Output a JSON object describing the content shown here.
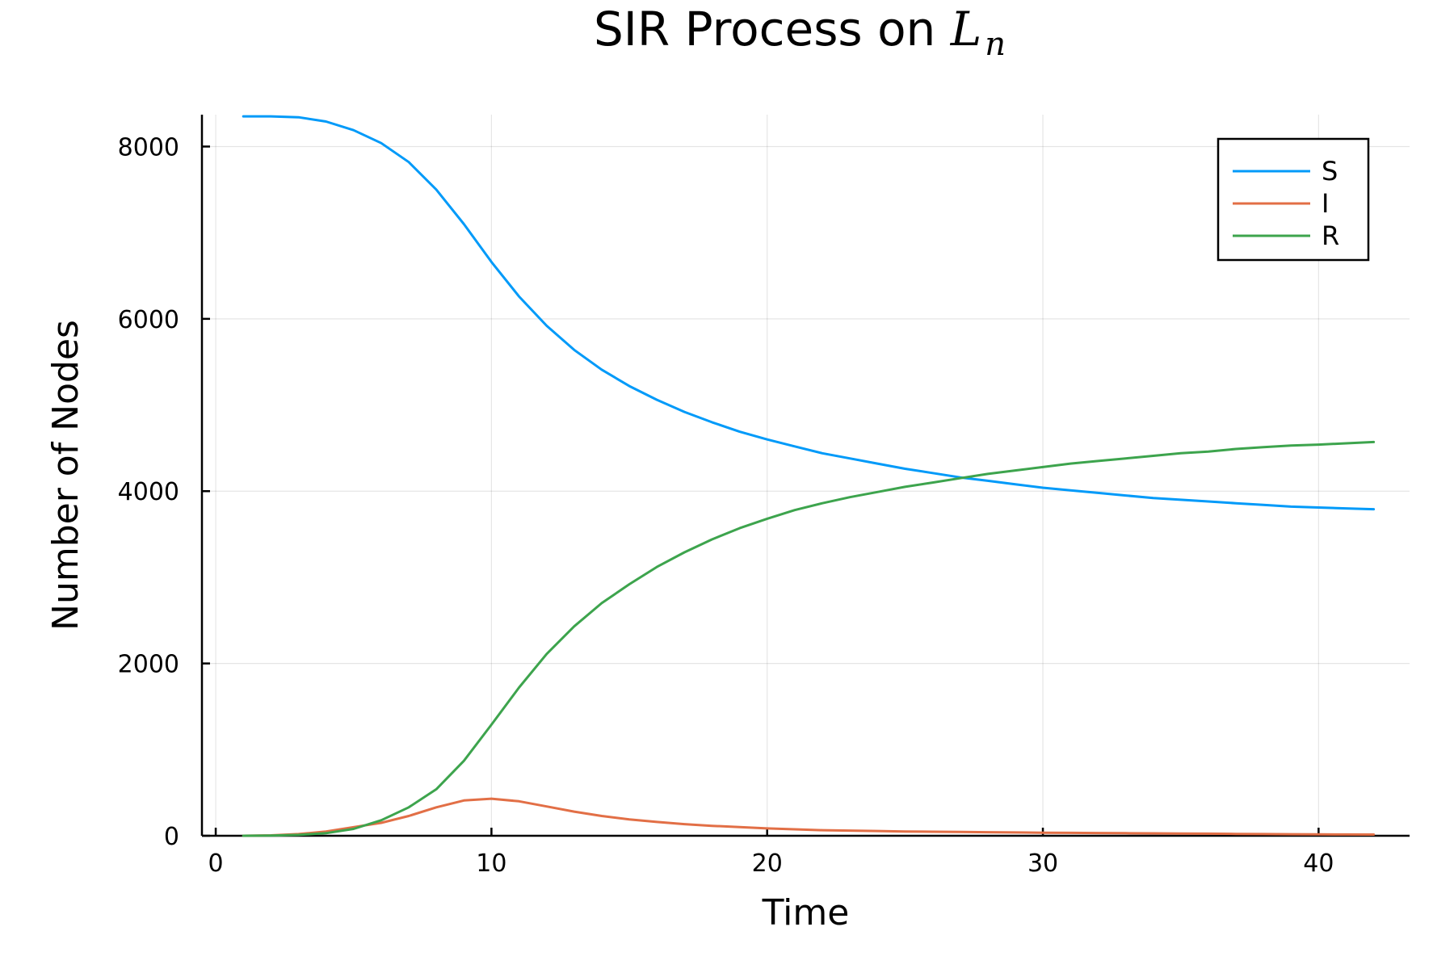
{
  "chart_data": {
    "type": "line",
    "title": "SIR Process on ",
    "title_math_base": "L",
    "title_math_sub": "n",
    "xlabel": "Time",
    "ylabel": "Number of Nodes",
    "xlim": [
      -0.5,
      43.3
    ],
    "ylim": [
      0,
      8370
    ],
    "xticks": [
      0,
      10,
      20,
      30,
      40
    ],
    "yticks": [
      0,
      2000,
      4000,
      6000,
      8000
    ],
    "grid": true,
    "legend_position": "top-right",
    "x": [
      1,
      2,
      3,
      4,
      5,
      6,
      7,
      8,
      9,
      10,
      11,
      12,
      13,
      14,
      15,
      16,
      17,
      18,
      19,
      20,
      21,
      22,
      23,
      24,
      25,
      26,
      27,
      28,
      29,
      30,
      31,
      32,
      33,
      34,
      35,
      36,
      37,
      38,
      39,
      40,
      41,
      42
    ],
    "series": [
      {
        "name": "S",
        "color": "#009af9",
        "values": [
          8350,
          8350,
          8340,
          8290,
          8190,
          8040,
          7820,
          7500,
          7100,
          6660,
          6260,
          5920,
          5640,
          5410,
          5220,
          5060,
          4920,
          4800,
          4690,
          4600,
          4520,
          4440,
          4380,
          4320,
          4260,
          4210,
          4160,
          4120,
          4080,
          4040,
          4010,
          3980,
          3950,
          3920,
          3900,
          3880,
          3860,
          3840,
          3820,
          3810,
          3800,
          3790
        ]
      },
      {
        "name": "I",
        "color": "#e26f46",
        "values": [
          0,
          5,
          20,
          50,
          100,
          150,
          230,
          330,
          410,
          430,
          400,
          340,
          280,
          230,
          190,
          160,
          135,
          115,
          100,
          85,
          75,
          65,
          60,
          55,
          50,
          47,
          44,
          41,
          38,
          36,
          34,
          32,
          30,
          28,
          26,
          24,
          22,
          20,
          18,
          16,
          15,
          14
        ]
      },
      {
        "name": "R",
        "color": "#3da44d",
        "values": [
          0,
          2,
          10,
          30,
          80,
          180,
          330,
          540,
          870,
          1290,
          1720,
          2110,
          2430,
          2700,
          2920,
          3120,
          3290,
          3440,
          3570,
          3680,
          3780,
          3860,
          3930,
          3990,
          4050,
          4100,
          4150,
          4200,
          4240,
          4280,
          4320,
          4350,
          4380,
          4410,
          4440,
          4460,
          4490,
          4510,
          4530,
          4540,
          4555,
          4570
        ]
      }
    ]
  }
}
